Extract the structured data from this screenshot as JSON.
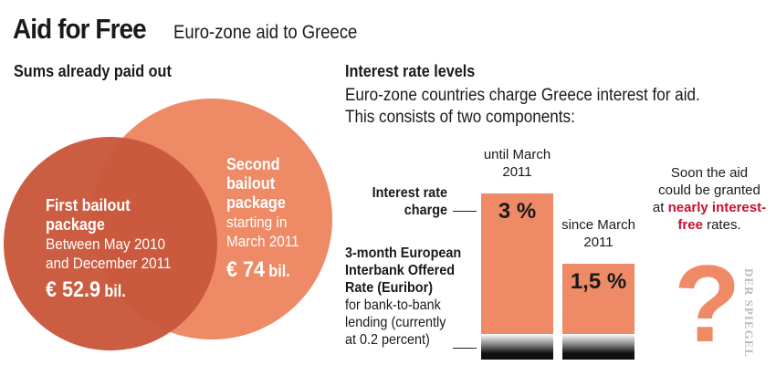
{
  "header": {
    "title": "Aid for Free",
    "subtitle": "Euro-zone aid to Greece"
  },
  "left": {
    "heading": "Sums already paid out",
    "first": {
      "title1": "First bailout",
      "title2": "package",
      "line1": "Between May 2010",
      "line2": "and December 2011",
      "amount": "€ 52.9",
      "unit": "bil.",
      "color": "#c9583c"
    },
    "second": {
      "title1": "Second",
      "title2": "bailout",
      "title3": "package",
      "line1": "starting in",
      "line2": "March 2011",
      "amount": "€ 74",
      "unit": "bil.",
      "color": "#ee8a66"
    }
  },
  "right": {
    "heading": "Interest rate levels",
    "intro1": "Euro-zone countries charge Greece interest for aid.",
    "intro2": "This consists of two components:",
    "charge_label1": "Interest rate",
    "charge_label2": "charge",
    "euribor1": "3-month European",
    "euribor2": "Interbank Offered",
    "euribor3": "Rate (Euribor)",
    "euribor4": "for bank-to-bank",
    "euribor5": "lending (currently",
    "euribor6": "at 0.2 percent)",
    "note1": "Soon the aid",
    "note2": "could be granted",
    "note3": "at",
    "note_hl1": "nearly interest-",
    "note_hl2": "free",
    "note4": "rates.",
    "highlight_color": "#c8102e",
    "question": "?"
  },
  "chart_data": {
    "type": "bar",
    "categories": [
      "until March 2011",
      "since March 2011"
    ],
    "cat_lines": [
      [
        "until March",
        "2011"
      ],
      [
        "since March",
        "2011"
      ]
    ],
    "values": [
      3,
      1.5
    ],
    "labels": [
      "3 %",
      "1,5 %"
    ],
    "unit": "%",
    "color": "#ee8a66"
  },
  "credit": "DER SPIEGEL"
}
